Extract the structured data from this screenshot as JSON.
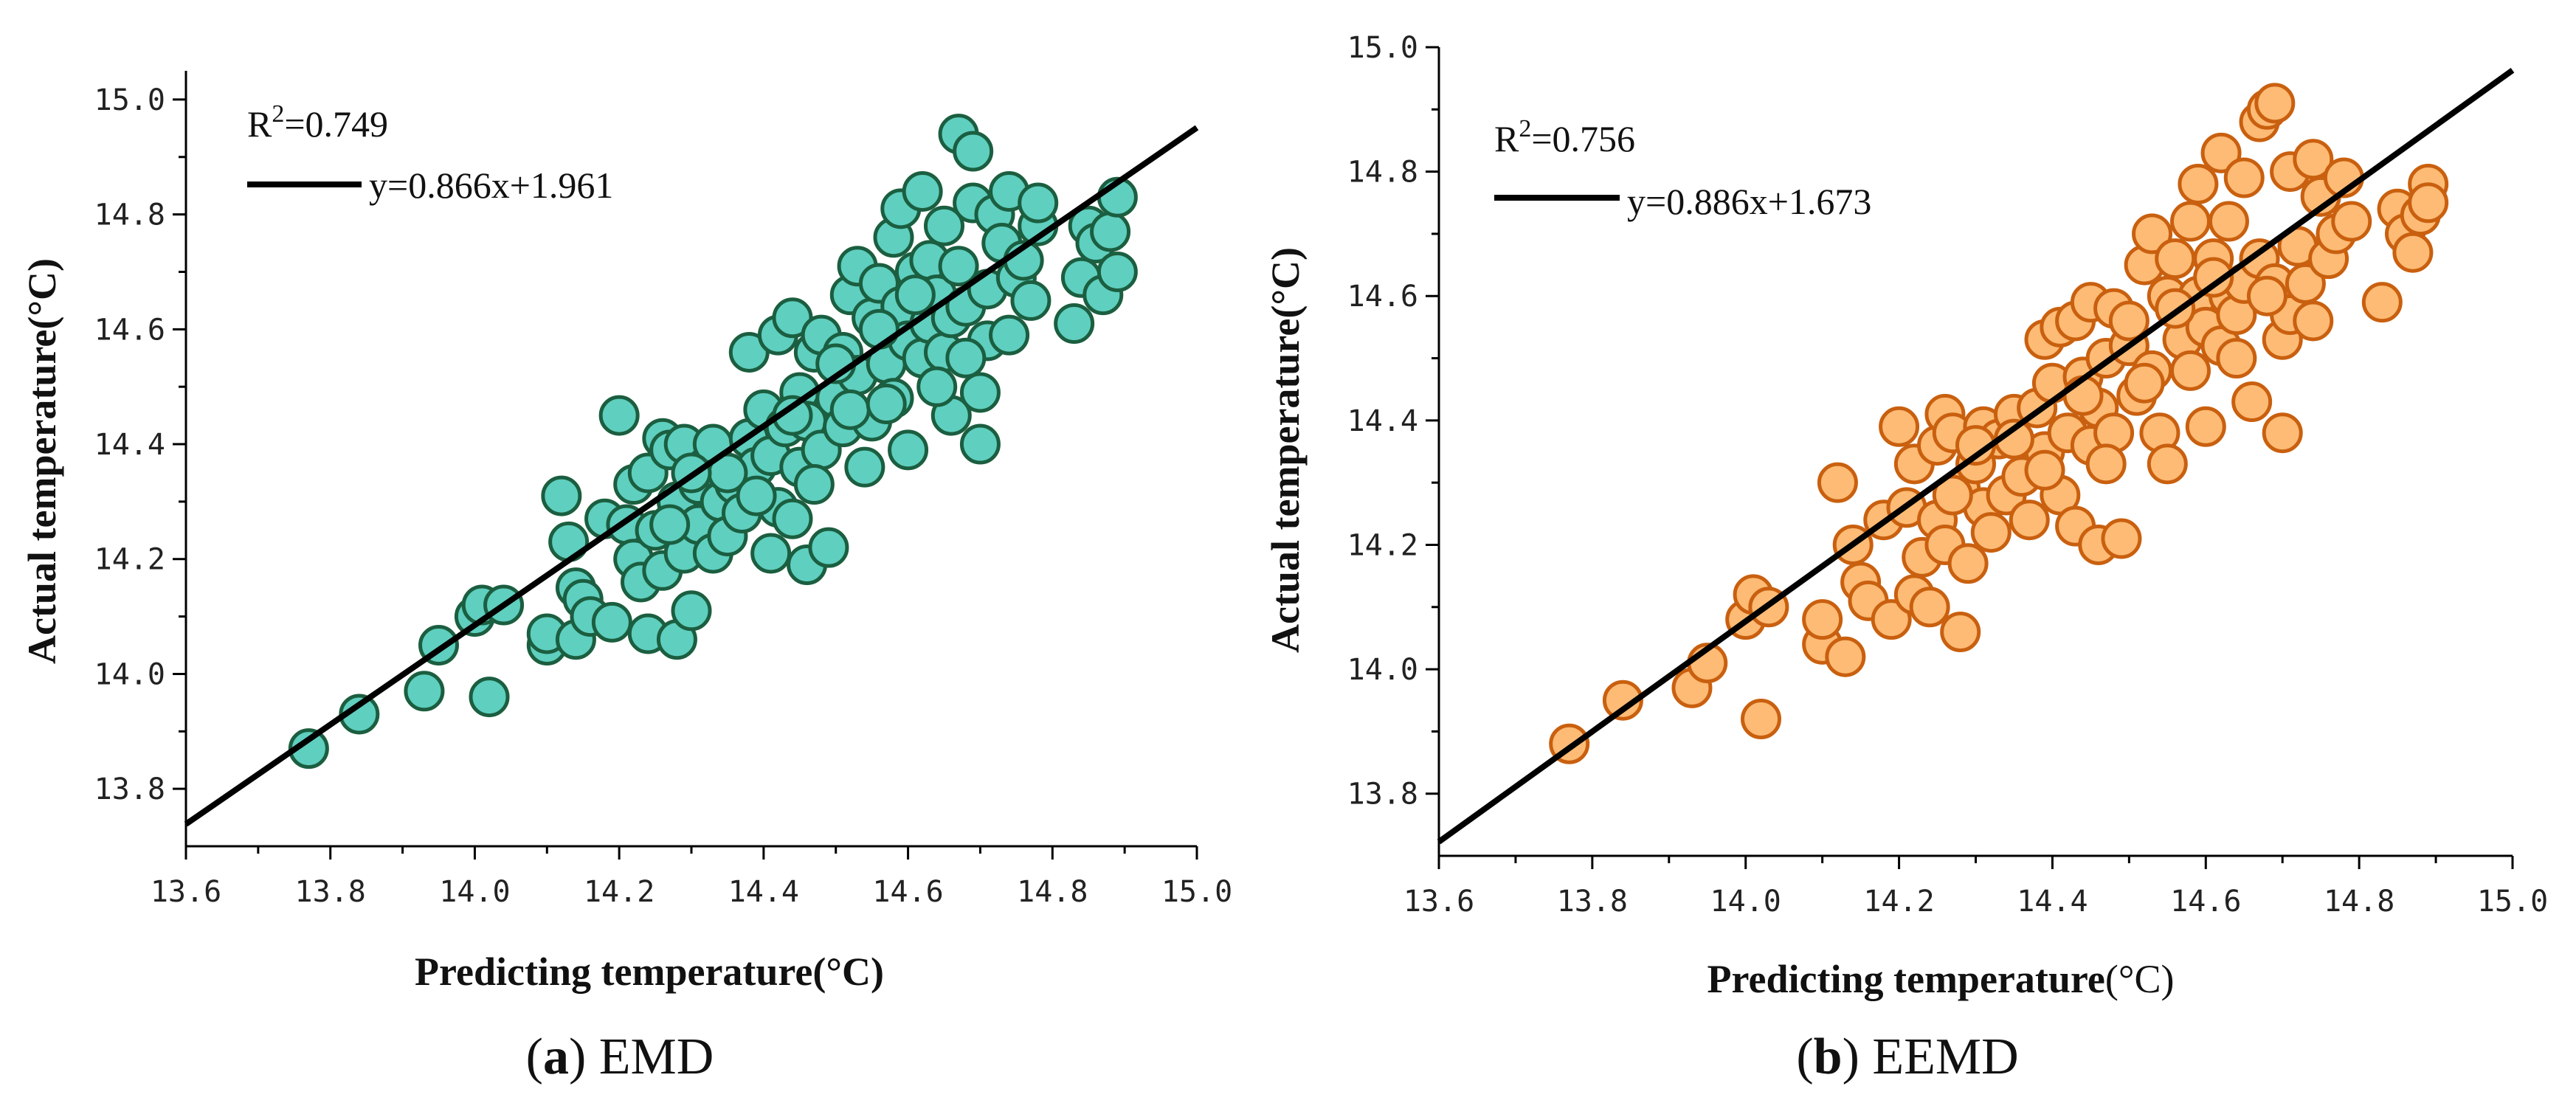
{
  "chart_data": [
    {
      "type": "scatter",
      "id": "emd",
      "caption_label": "a",
      "caption_text": " EMD",
      "xlabel_bold": "Predicting temperature",
      "xlabel_unit": "(°C)",
      "ylabel": "Actual temperature(°C)",
      "xlim": [
        13.6,
        15.0
      ],
      "ylim": [
        13.7,
        15.05
      ],
      "xticks": [
        13.6,
        13.8,
        14.0,
        14.2,
        14.4,
        14.6,
        14.8,
        15.0
      ],
      "xtick_labels": [
        "13.6",
        "13.8",
        "14.0",
        "14.2",
        "14.4",
        "14.6",
        "14.8",
        "15.0"
      ],
      "yticks": [
        13.8,
        14.0,
        14.2,
        14.4,
        14.6,
        14.8,
        15.0
      ],
      "ytick_labels": [
        "13.8",
        "14.0",
        "14.2",
        "14.4",
        "14.6",
        "14.8",
        "15.0"
      ],
      "r2_prefix": "R",
      "r2_sup": "2",
      "r2_value": "=0.749",
      "fit_label": "y=0.866x+1.961",
      "fit": {
        "slope": 0.866,
        "intercept": 1.961
      },
      "marker_fill": "#5fcfbf",
      "marker_stroke": "#1b5e40",
      "points": [
        [
          13.77,
          13.87
        ],
        [
          13.84,
          13.93
        ],
        [
          13.93,
          13.97
        ],
        [
          13.95,
          14.05
        ],
        [
          14.0,
          14.1
        ],
        [
          14.01,
          14.12
        ],
        [
          14.04,
          14.12
        ],
        [
          14.02,
          13.96
        ],
        [
          14.1,
          14.05
        ],
        [
          14.1,
          14.07
        ],
        [
          14.12,
          14.31
        ],
        [
          14.14,
          14.06
        ],
        [
          14.13,
          14.23
        ],
        [
          14.14,
          14.15
        ],
        [
          14.15,
          14.13
        ],
        [
          14.16,
          14.1
        ],
        [
          14.18,
          14.27
        ],
        [
          14.19,
          14.09
        ],
        [
          14.2,
          14.45
        ],
        [
          14.21,
          14.26
        ],
        [
          14.22,
          14.2
        ],
        [
          14.22,
          14.33
        ],
        [
          14.23,
          14.16
        ],
        [
          14.24,
          14.07
        ],
        [
          14.24,
          14.35
        ],
        [
          14.25,
          14.25
        ],
        [
          14.26,
          14.41
        ],
        [
          14.26,
          14.18
        ],
        [
          14.27,
          14.39
        ],
        [
          14.28,
          14.3
        ],
        [
          14.28,
          14.06
        ],
        [
          14.29,
          14.21
        ],
        [
          14.29,
          14.4
        ],
        [
          14.3,
          14.11
        ],
        [
          14.31,
          14.26
        ],
        [
          14.31,
          14.33
        ],
        [
          14.32,
          14.36
        ],
        [
          14.33,
          14.4
        ],
        [
          14.33,
          14.21
        ],
        [
          14.34,
          14.3
        ],
        [
          14.35,
          14.24
        ],
        [
          14.36,
          14.33
        ],
        [
          14.37,
          14.28
        ],
        [
          14.38,
          14.41
        ],
        [
          14.38,
          14.56
        ],
        [
          14.39,
          14.36
        ],
        [
          14.4,
          14.46
        ],
        [
          14.41,
          14.21
        ],
        [
          14.41,
          14.38
        ],
        [
          14.42,
          14.59
        ],
        [
          14.42,
          14.29
        ],
        [
          14.43,
          14.43
        ],
        [
          14.44,
          14.62
        ],
        [
          14.44,
          14.27
        ],
        [
          14.45,
          14.49
        ],
        [
          14.45,
          14.36
        ],
        [
          14.46,
          14.19
        ],
        [
          14.46,
          14.44
        ],
        [
          14.47,
          14.56
        ],
        [
          14.48,
          14.39
        ],
        [
          14.48,
          14.59
        ],
        [
          14.49,
          14.22
        ],
        [
          14.5,
          14.48
        ],
        [
          14.51,
          14.56
        ],
        [
          14.51,
          14.43
        ],
        [
          14.52,
          14.66
        ],
        [
          14.53,
          14.71
        ],
        [
          14.53,
          14.52
        ],
        [
          14.54,
          14.36
        ],
        [
          14.55,
          14.62
        ],
        [
          14.55,
          14.44
        ],
        [
          14.56,
          14.68
        ],
        [
          14.57,
          14.54
        ],
        [
          14.58,
          14.76
        ],
        [
          14.58,
          14.48
        ],
        [
          14.59,
          14.64
        ],
        [
          14.59,
          14.81
        ],
        [
          14.6,
          14.58
        ],
        [
          14.6,
          14.39
        ],
        [
          14.61,
          14.7
        ],
        [
          14.62,
          14.55
        ],
        [
          14.62,
          14.84
        ],
        [
          14.63,
          14.61
        ],
        [
          14.63,
          14.72
        ],
        [
          14.64,
          14.66
        ],
        [
          14.65,
          14.78
        ],
        [
          14.65,
          14.56
        ],
        [
          14.66,
          14.62
        ],
        [
          14.66,
          14.45
        ],
        [
          14.67,
          14.94
        ],
        [
          14.67,
          14.71
        ],
        [
          14.68,
          14.64
        ],
        [
          14.69,
          14.91
        ],
        [
          14.69,
          14.82
        ],
        [
          14.7,
          14.49
        ],
        [
          14.7,
          14.4
        ],
        [
          14.71,
          14.58
        ],
        [
          14.71,
          14.67
        ],
        [
          14.72,
          14.8
        ],
        [
          14.73,
          14.75
        ],
        [
          14.74,
          14.84
        ],
        [
          14.74,
          14.59
        ],
        [
          14.75,
          14.69
        ],
        [
          14.76,
          14.72
        ],
        [
          14.77,
          14.65
        ],
        [
          14.78,
          14.78
        ],
        [
          14.78,
          14.82
        ],
        [
          14.83,
          14.61
        ],
        [
          14.84,
          14.69
        ],
        [
          14.85,
          14.78
        ],
        [
          14.86,
          14.75
        ],
        [
          14.87,
          14.66
        ],
        [
          14.88,
          14.77
        ],
        [
          14.89,
          14.83
        ],
        [
          14.89,
          14.7
        ],
        [
          14.52,
          14.46
        ],
        [
          14.5,
          14.54
        ],
        [
          14.47,
          14.33
        ],
        [
          14.35,
          14.35
        ],
        [
          14.3,
          14.35
        ],
        [
          14.27,
          14.26
        ],
        [
          14.56,
          14.6
        ],
        [
          14.61,
          14.66
        ],
        [
          14.44,
          14.45
        ],
        [
          14.39,
          14.31
        ],
        [
          14.68,
          14.55
        ],
        [
          14.64,
          14.5
        ],
        [
          14.57,
          14.47
        ]
      ]
    },
    {
      "type": "scatter",
      "id": "eemd",
      "caption_label": "b",
      "caption_text": " EEMD",
      "xlabel_bold": "Predicting temperature",
      "xlabel_unit": "(°C)",
      "ylabel": "Actual temperature(°C)",
      "xlim": [
        13.6,
        15.0
      ],
      "ylim": [
        13.7,
        15.0
      ],
      "xticks": [
        13.6,
        13.8,
        14.0,
        14.2,
        14.4,
        14.6,
        14.8,
        15.0
      ],
      "xtick_labels": [
        "13.6",
        "13.8",
        "14.0",
        "14.2",
        "14.4",
        "14.6",
        "14.8",
        "15.0"
      ],
      "yticks": [
        13.8,
        14.0,
        14.2,
        14.4,
        14.6,
        14.8,
        15.0
      ],
      "ytick_labels": [
        "13.8",
        "14.0",
        "14.2",
        "14.4",
        "14.6",
        "14.8",
        "15.0"
      ],
      "r2_prefix": "R",
      "r2_sup": "2",
      "r2_value": "=0.756",
      "fit_label": "y=0.886x+1.673",
      "fit": {
        "slope": 0.886,
        "intercept": 1.673
      },
      "marker_fill": "#fdbb75",
      "marker_stroke": "#c9600f",
      "points": [
        [
          13.77,
          13.88
        ],
        [
          13.84,
          13.95
        ],
        [
          13.93,
          13.97
        ],
        [
          13.95,
          14.01
        ],
        [
          14.0,
          14.08
        ],
        [
          14.01,
          14.12
        ],
        [
          14.03,
          14.1
        ],
        [
          14.02,
          13.92
        ],
        [
          14.1,
          14.04
        ],
        [
          14.1,
          14.08
        ],
        [
          14.12,
          14.3
        ],
        [
          14.13,
          14.02
        ],
        [
          14.14,
          14.2
        ],
        [
          14.15,
          14.14
        ],
        [
          14.16,
          14.11
        ],
        [
          14.18,
          14.24
        ],
        [
          14.19,
          14.08
        ],
        [
          14.2,
          14.39
        ],
        [
          14.21,
          14.26
        ],
        [
          14.22,
          14.12
        ],
        [
          14.22,
          14.33
        ],
        [
          14.23,
          14.18
        ],
        [
          14.24,
          14.1
        ],
        [
          14.25,
          14.36
        ],
        [
          14.25,
          14.24
        ],
        [
          14.26,
          14.41
        ],
        [
          14.26,
          14.2
        ],
        [
          14.27,
          14.38
        ],
        [
          14.28,
          14.06
        ],
        [
          14.28,
          14.29
        ],
        [
          14.29,
          14.17
        ],
        [
          14.3,
          14.33
        ],
        [
          14.31,
          14.26
        ],
        [
          14.31,
          14.39
        ],
        [
          14.32,
          14.22
        ],
        [
          14.33,
          14.37
        ],
        [
          14.34,
          14.28
        ],
        [
          14.35,
          14.41
        ],
        [
          14.36,
          14.31
        ],
        [
          14.37,
          14.24
        ],
        [
          14.38,
          14.42
        ],
        [
          14.39,
          14.53
        ],
        [
          14.39,
          14.35
        ],
        [
          14.4,
          14.46
        ],
        [
          14.41,
          14.28
        ],
        [
          14.41,
          14.55
        ],
        [
          14.42,
          14.38
        ],
        [
          14.43,
          14.23
        ],
        [
          14.43,
          14.56
        ],
        [
          14.44,
          14.47
        ],
        [
          14.45,
          14.36
        ],
        [
          14.45,
          14.59
        ],
        [
          14.46,
          14.42
        ],
        [
          14.46,
          14.2
        ],
        [
          14.47,
          14.5
        ],
        [
          14.48,
          14.58
        ],
        [
          14.48,
          14.38
        ],
        [
          14.49,
          14.21
        ],
        [
          14.5,
          14.52
        ],
        [
          14.51,
          14.44
        ],
        [
          14.52,
          14.65
        ],
        [
          14.53,
          14.7
        ],
        [
          14.53,
          14.48
        ],
        [
          14.54,
          14.38
        ],
        [
          14.55,
          14.6
        ],
        [
          14.55,
          14.33
        ],
        [
          14.56,
          14.66
        ],
        [
          14.57,
          14.53
        ],
        [
          14.58,
          14.72
        ],
        [
          14.58,
          14.48
        ],
        [
          14.59,
          14.78
        ],
        [
          14.59,
          14.6
        ],
        [
          14.6,
          14.55
        ],
        [
          14.6,
          14.39
        ],
        [
          14.61,
          14.66
        ],
        [
          14.62,
          14.52
        ],
        [
          14.62,
          14.83
        ],
        [
          14.63,
          14.6
        ],
        [
          14.63,
          14.72
        ],
        [
          14.64,
          14.57
        ],
        [
          14.65,
          14.79
        ],
        [
          14.65,
          14.62
        ],
        [
          14.66,
          14.43
        ],
        [
          14.67,
          14.88
        ],
        [
          14.67,
          14.66
        ],
        [
          14.68,
          14.9
        ],
        [
          14.69,
          14.62
        ],
        [
          14.69,
          14.91
        ],
        [
          14.7,
          14.53
        ],
        [
          14.7,
          14.38
        ],
        [
          14.71,
          14.8
        ],
        [
          14.71,
          14.57
        ],
        [
          14.72,
          14.68
        ],
        [
          14.73,
          14.62
        ],
        [
          14.74,
          14.82
        ],
        [
          14.74,
          14.56
        ],
        [
          14.75,
          14.76
        ],
        [
          14.76,
          14.66
        ],
        [
          14.77,
          14.7
        ],
        [
          14.78,
          14.79
        ],
        [
          14.79,
          14.72
        ],
        [
          14.83,
          14.59
        ],
        [
          14.85,
          14.74
        ],
        [
          14.86,
          14.7
        ],
        [
          14.87,
          14.67
        ],
        [
          14.88,
          14.73
        ],
        [
          14.89,
          14.78
        ],
        [
          14.89,
          14.75
        ],
        [
          14.52,
          14.46
        ],
        [
          14.5,
          14.56
        ],
        [
          14.47,
          14.33
        ],
        [
          14.35,
          14.37
        ],
        [
          14.3,
          14.36
        ],
        [
          14.27,
          14.28
        ],
        [
          14.56,
          14.58
        ],
        [
          14.61,
          14.63
        ],
        [
          14.44,
          14.44
        ],
        [
          14.39,
          14.32
        ],
        [
          14.68,
          14.6
        ],
        [
          14.64,
          14.5
        ]
      ]
    }
  ]
}
